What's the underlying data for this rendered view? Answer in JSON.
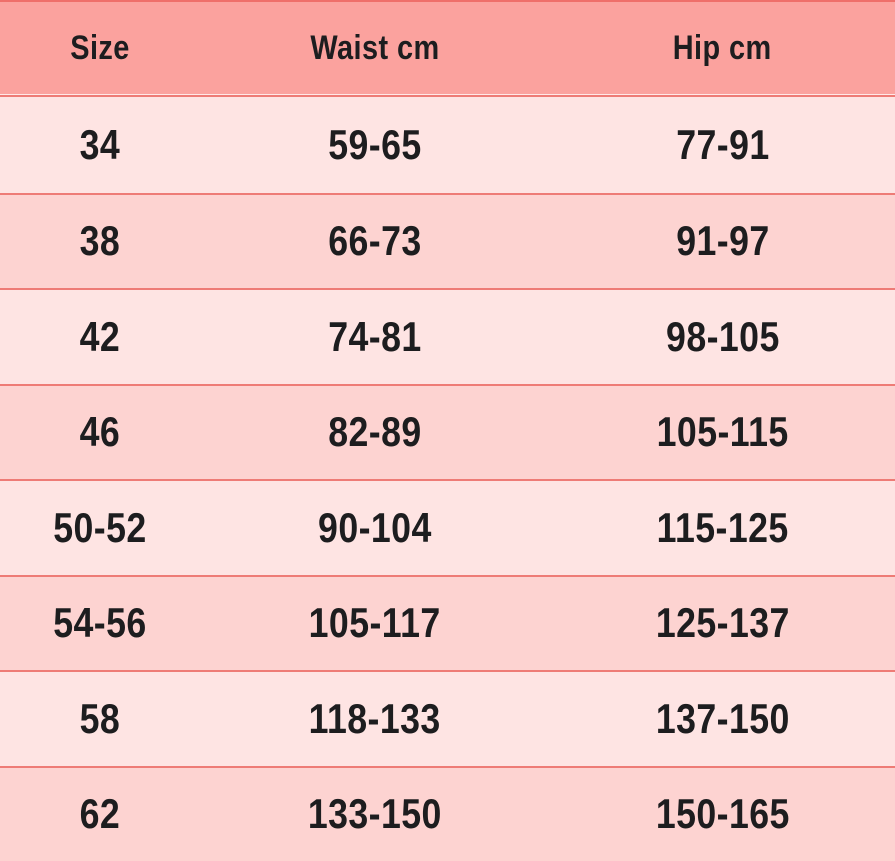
{
  "chart_data": {
    "type": "table",
    "title": "",
    "columns": [
      "Size",
      "Waist cm",
      "Hip cm"
    ],
    "rows": [
      [
        "34",
        "59-65",
        "77-91"
      ],
      [
        "38",
        "66-73",
        "91-97"
      ],
      [
        "42",
        "74-81",
        "98-105"
      ],
      [
        "46",
        "82-89",
        "105-115"
      ],
      [
        "50-52",
        "90-104",
        "115-125"
      ],
      [
        "54-56",
        "105-117",
        "125-137"
      ],
      [
        "58",
        "118-133",
        "137-150"
      ],
      [
        "62",
        "133-150",
        "150-165"
      ]
    ]
  },
  "colors": {
    "header_bg": "#fba29e",
    "row_light": "#fee4e3",
    "row_dark": "#fdd3d1",
    "divider": "#ee7b76",
    "top_border": "#ef6f6a",
    "header_highlight_line": "#ffe9e8",
    "text": "#1d1d1f"
  }
}
